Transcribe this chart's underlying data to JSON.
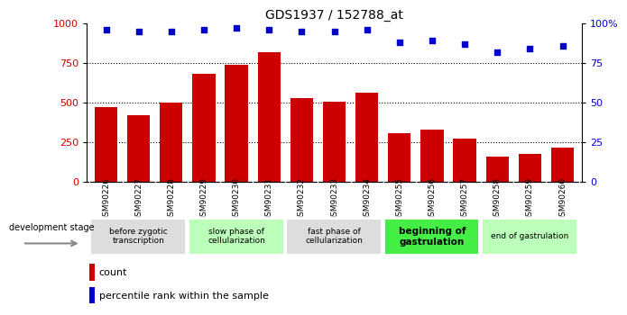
{
  "title": "GDS1937 / 152788_at",
  "categories": [
    "GSM90226",
    "GSM90227",
    "GSM90228",
    "GSM90229",
    "GSM90230",
    "GSM90231",
    "GSM90232",
    "GSM90233",
    "GSM90234",
    "GSM90255",
    "GSM90256",
    "GSM90257",
    "GSM90258",
    "GSM90259",
    "GSM90260"
  ],
  "counts": [
    470,
    420,
    500,
    680,
    740,
    820,
    530,
    505,
    565,
    305,
    330,
    270,
    160,
    175,
    215
  ],
  "percentile": [
    96,
    95,
    95,
    96,
    97,
    96,
    95,
    95,
    96,
    88,
    89,
    87,
    82,
    84,
    86
  ],
  "bar_color": "#cc0000",
  "dot_color": "#0000cc",
  "left_yaxis": {
    "min": 0,
    "max": 1000,
    "ticks": [
      0,
      250,
      500,
      750,
      1000
    ],
    "color": "#cc0000"
  },
  "right_yaxis": {
    "min": 0,
    "max": 100,
    "ticks": [
      0,
      25,
      50,
      75,
      100
    ],
    "color": "#0000cc",
    "ticklabels": [
      "0",
      "25",
      "50",
      "75",
      "100%"
    ]
  },
  "grid_values": [
    250,
    500,
    750
  ],
  "stages": [
    {
      "label": "before zygotic\ntranscription",
      "start": 0,
      "end": 3,
      "color": "#dddddd",
      "bold": false
    },
    {
      "label": "slow phase of\ncellularization",
      "start": 3,
      "end": 6,
      "color": "#bbffbb",
      "bold": false
    },
    {
      "label": "fast phase of\ncellularization",
      "start": 6,
      "end": 9,
      "color": "#dddddd",
      "bold": false
    },
    {
      "label": "beginning of\ngastrulation",
      "start": 9,
      "end": 12,
      "color": "#44ee44",
      "bold": true
    },
    {
      "label": "end of gastrulation",
      "start": 12,
      "end": 15,
      "color": "#bbffbb",
      "bold": false
    }
  ],
  "dev_stage_label": "development stage",
  "legend_count_label": "count",
  "legend_pct_label": "percentile rank within the sample",
  "xtick_bg_color": "#cccccc",
  "figure_bg": "#ffffff"
}
